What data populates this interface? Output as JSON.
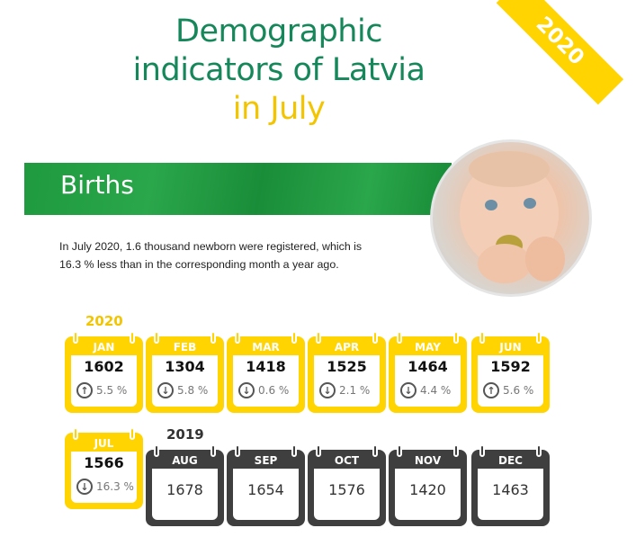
{
  "ribbon": "2020",
  "title": {
    "line1": "Demographic",
    "line2": "indicators of Latvia",
    "line3": "in July"
  },
  "section": "Births",
  "description": "In July 2020, 1.6 thousand newborn were registered, which is 16.3 % less than in the corresponding month a year ago.",
  "years": {
    "current": "2020",
    "previous": "2019"
  },
  "months_2020": [
    {
      "month": "JAN",
      "value": "1602",
      "change": "5.5 %",
      "direction": "up"
    },
    {
      "month": "FEB",
      "value": "1304",
      "change": "5.8 %",
      "direction": "down"
    },
    {
      "month": "MAR",
      "value": "1418",
      "change": "0.6 %",
      "direction": "down"
    },
    {
      "month": "APR",
      "value": "1525",
      "change": "2.1 %",
      "direction": "down"
    },
    {
      "month": "MAY",
      "value": "1464",
      "change": "4.4 %",
      "direction": "down"
    },
    {
      "month": "JUN",
      "value": "1592",
      "change": "5.6 %",
      "direction": "up"
    },
    {
      "month": "JUL",
      "value": "1566",
      "change": "16.3 %",
      "direction": "down"
    }
  ],
  "months_2019": [
    {
      "month": "AUG",
      "value": "1678"
    },
    {
      "month": "SEP",
      "value": "1654"
    },
    {
      "month": "OCT",
      "value": "1576"
    },
    {
      "month": "NOV",
      "value": "1420"
    },
    {
      "month": "DEC",
      "value": "1463"
    }
  ],
  "colors": {
    "green": "#16875a",
    "yellow": "#ffd400",
    "dark": "#3f3f3f"
  },
  "icons": {
    "up": "arrow-up-circle-icon",
    "down": "arrow-down-circle-icon"
  }
}
